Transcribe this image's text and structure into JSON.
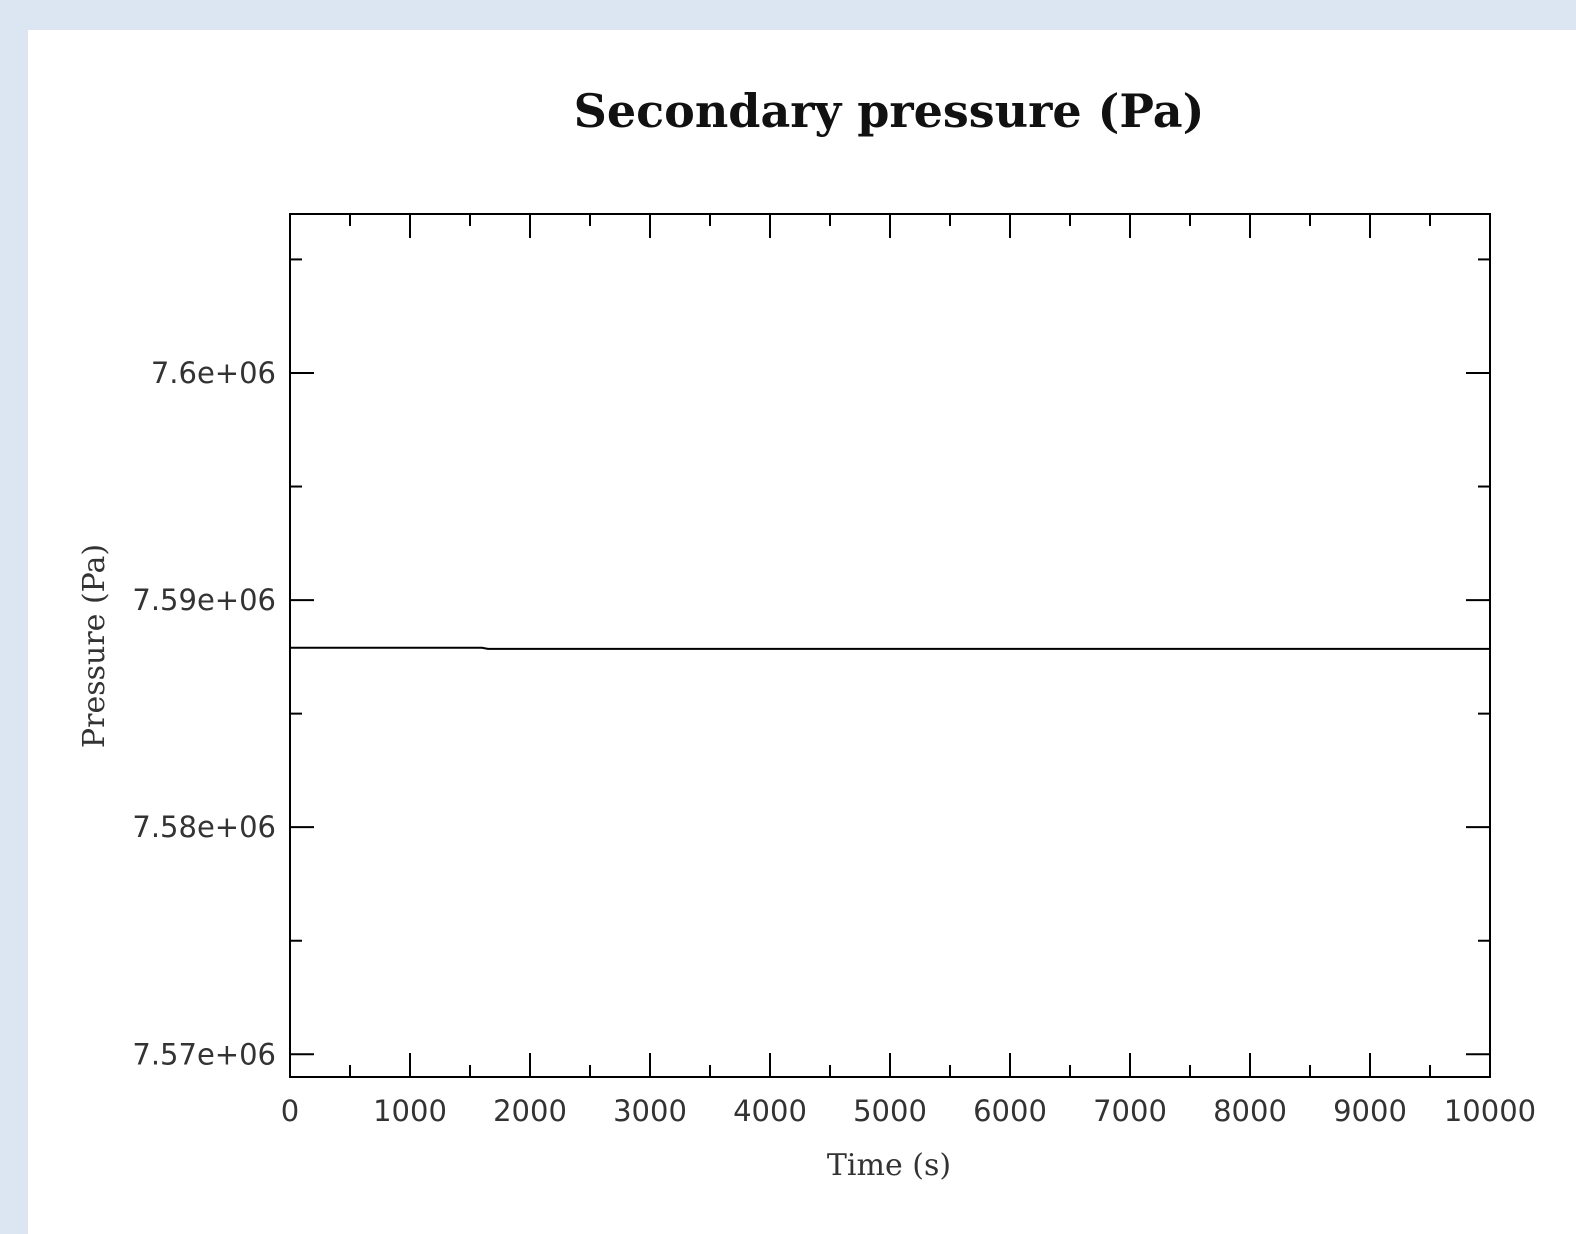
{
  "chart_data": {
    "type": "line",
    "title": "Secondary pressure (Pa)",
    "xlabel": "Time (s)",
    "ylabel": "Pressure (Pa)",
    "xlim": [
      0,
      10000
    ],
    "ylim": [
      7569000,
      7607000
    ],
    "x_ticks": [
      0,
      1000,
      2000,
      3000,
      4000,
      5000,
      6000,
      7000,
      8000,
      9000,
      10000
    ],
    "x_tick_labels": [
      "0",
      "1000",
      "2000",
      "3000",
      "4000",
      "5000",
      "6000",
      "7000",
      "8000",
      "9000",
      "10000"
    ],
    "x_minor_ticks": [
      500,
      1500,
      2500,
      3500,
      4500,
      5500,
      6500,
      7500,
      8500,
      9500
    ],
    "y_ticks": [
      7570000,
      7580000,
      7590000,
      7600000
    ],
    "y_tick_labels": [
      "7.57e+06",
      "7.58e+06",
      "7.59e+06",
      "7.6e+06"
    ],
    "y_minor_ticks": [
      7575000,
      7585000,
      7595000,
      7605000
    ],
    "grid": false,
    "series": [
      {
        "color": "#000000",
        "x": [
          0,
          1600,
          1650,
          10000
        ],
        "y": [
          7587900,
          7587900,
          7587850,
          7587850
        ]
      }
    ]
  }
}
